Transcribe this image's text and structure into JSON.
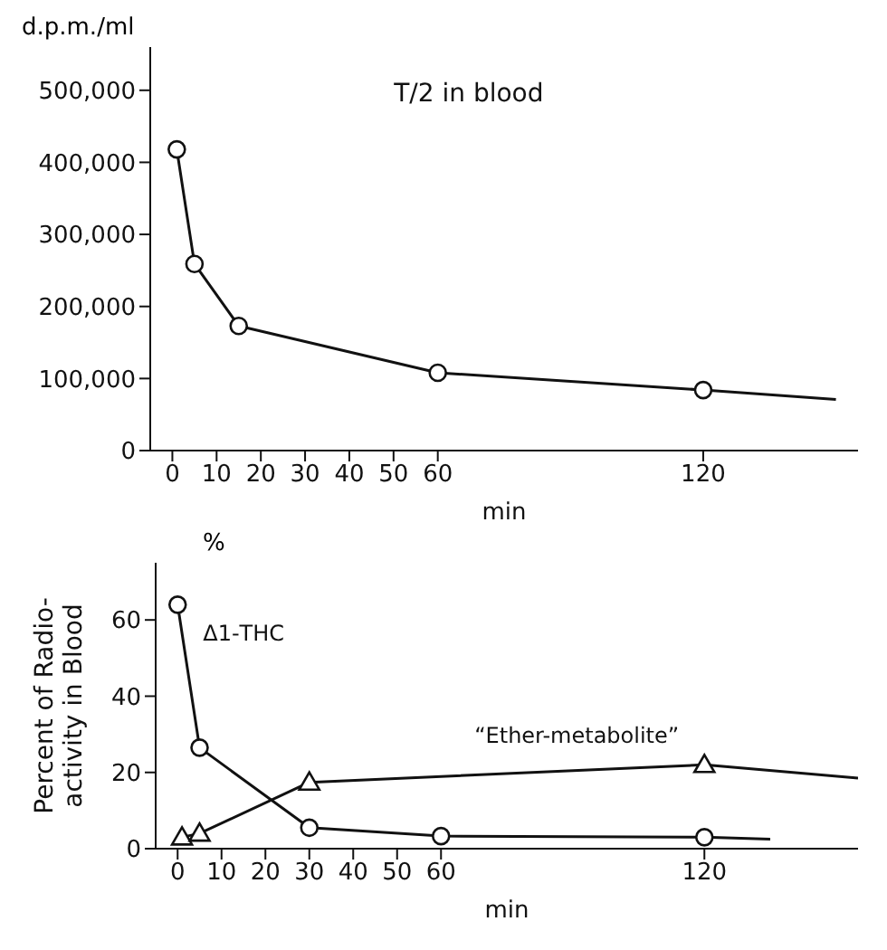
{
  "chart_data": [
    {
      "type": "line",
      "title": "T/2 in blood",
      "ylabel": "d.p.m./ml",
      "xlabel": "min",
      "marker": "circle",
      "xlim": [
        -5,
        155
      ],
      "xticks": [
        0,
        10,
        20,
        30,
        40,
        50,
        60,
        120
      ],
      "ylim": [
        0,
        560000
      ],
      "yticks": [
        0,
        {
          "value": 100000,
          "label": "100,000"
        },
        {
          "value": 200000,
          "label": "200,000"
        },
        {
          "value": 300000,
          "label": "300,000"
        },
        {
          "value": 400000,
          "label": "400,000"
        },
        {
          "value": 500000,
          "label": "500,000"
        }
      ],
      "series": [
        {
          "color": "#111111",
          "x": [
            1,
            5,
            15,
            60,
            120,
            150
          ],
          "values": [
            418000,
            259000,
            173000,
            108000,
            84000,
            71000
          ]
        }
      ]
    },
    {
      "type": "line",
      "ylabel": "Percent of Radio-\nactivity in Blood",
      "xlabel": "min",
      "xlim": [
        -5,
        155
      ],
      "xticks": [
        0,
        10,
        20,
        30,
        40,
        50,
        60,
        120
      ],
      "ylim": [
        0,
        75
      ],
      "yticks": [
        0,
        20,
        40,
        60
      ],
      "annotations": [
        "%"
      ],
      "series": [
        {
          "name": "Δ1-THC",
          "color": "#111111",
          "marker": "circle",
          "x": [
            0,
            5,
            30,
            60,
            120,
            135
          ],
          "values": [
            64,
            26.5,
            5.5,
            3.3,
            3,
            2.5
          ]
        },
        {
          "name": "“Ether-metabolite”",
          "color": "#111111",
          "marker": "triangle",
          "x": [
            1,
            5,
            30,
            120,
            155
          ],
          "values": [
            3,
            4,
            17.4,
            22,
            18.5
          ]
        }
      ]
    }
  ]
}
